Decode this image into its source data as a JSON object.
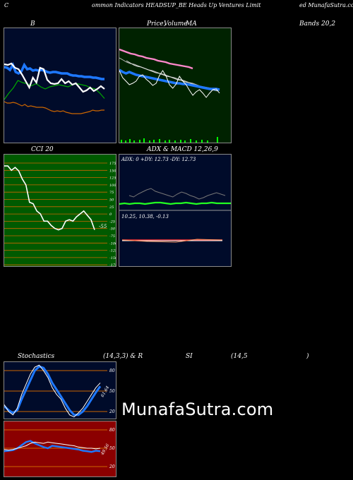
{
  "header": {
    "left_c": "C",
    "title_mid": "ommon  Indicators HEADSUP_BE Heads Up Ventures Limit",
    "title_right": "ed MunafaSutra.com"
  },
  "labels": {
    "bb": "B",
    "price": "Price,",
    "volume": "Volume",
    "ma": "MA",
    "bands": "Bands 20,2",
    "cci": "CCI 20",
    "adx_macd": "ADX  & MACD 12,26,9",
    "adx_text": "ADX: 0   +DY: 12.73  -DY: 12.73",
    "macd_text": "10.25,  10.38,  -0.13",
    "stoch": "Stochastics",
    "stoch_params": "(14,3,3) & R",
    "si": "SI",
    "rsi_params": "(14,5",
    "rsi_close": ")",
    "cci_value": "-55",
    "stoch_value": "61.64",
    "rsi_value": "49.56",
    "watermark": "MunafaSutra.com"
  },
  "colors": {
    "panel_dark": "#000b2a",
    "panel_green": "#002200",
    "panel_red": "#8b0000",
    "cci_green": "#005a00",
    "blue_line": "#1e78ff",
    "orange_line": "#cc6600",
    "green_line": "#00aa00",
    "pink_line": "#ff88cc"
  },
  "cci_ticks": [
    "175",
    "150",
    "125",
    "100",
    "75",
    "50",
    "25",
    "0",
    "-25",
    "-50",
    "-75",
    "-100",
    "-125",
    "-150",
    "-175"
  ],
  "stoch_ticks": [
    "80",
    "50",
    "20"
  ],
  "rsi_ticks": [
    "80",
    "50",
    "20"
  ],
  "chart_data": [
    {
      "type": "line",
      "name": "bollinger",
      "series": [
        {
          "values": [
            66,
            72,
            77,
            84,
            82,
            81,
            79,
            81,
            78,
            76,
            78,
            79,
            80,
            79,
            78,
            80,
            81,
            80,
            79,
            77,
            76,
            72,
            67
          ]
        },
        {
          "values": [
            95,
            96,
            99,
            92,
            102,
            104,
            101,
            92,
            98,
            97,
            100,
            99,
            100,
            99,
            100,
            102,
            103,
            102,
            102,
            103,
            104,
            104,
            104,
            106,
            107,
            107,
            108,
            108,
            109,
            109,
            109,
            110,
            110,
            111,
            112,
            112
          ]
        },
        {
          "values": [
            91,
            92,
            90,
            96,
            98,
            106,
            115,
            124,
            110,
            117,
            96,
            98,
            113,
            118,
            119,
            118,
            112,
            118,
            115,
            120,
            118,
            124,
            130,
            128,
            124,
            129,
            126,
            122,
            126
          ]
        },
        {
          "values": [
            126,
            128,
            128,
            127,
            128,
            130,
            132,
            130,
            133,
            132,
            133,
            134,
            134,
            134,
            135,
            137,
            139,
            140,
            139,
            140,
            139,
            141,
            142,
            143,
            143,
            143,
            143,
            142,
            141,
            140,
            138,
            139,
            139,
            138,
            138
          ]
        }
      ]
    },
    {
      "type": "line",
      "name": "price_ma",
      "series": [
        {
          "values": [
            70,
            72,
            74,
            76,
            77,
            79,
            80,
            82,
            83,
            84,
            86,
            87,
            88,
            90,
            91,
            92,
            93,
            94,
            95,
            97
          ]
        },
        {
          "values": [
            82,
            85,
            88,
            90,
            91,
            93,
            95,
            97,
            99,
            100,
            102,
            104,
            105,
            107,
            109,
            110,
            112,
            113,
            115,
            117,
            118,
            120,
            122,
            123,
            124,
            125
          ]
        },
        {
          "values": [
            99,
            102,
            104,
            102,
            104,
            106,
            107,
            108,
            109,
            110,
            111,
            112,
            113,
            114,
            115,
            116,
            117,
            118,
            118,
            119,
            119,
            120,
            121,
            122,
            123,
            124,
            125,
            126,
            126,
            126,
            127
          ]
        },
        {
          "values": [
            100,
            110,
            115,
            120,
            118,
            115,
            108,
            106,
            112,
            116,
            121,
            118,
            107,
            100,
            108,
            120,
            125,
            119,
            108,
            115,
            120,
            128,
            135,
            130,
            127,
            132,
            138,
            132,
            127,
            126,
            132
          ]
        }
      ]
    },
    {
      "type": "line",
      "name": "cci",
      "series": [
        {
          "values": [
            165,
            165,
            150,
            160,
            148,
            120,
            100,
            40,
            35,
            10,
            0,
            -25,
            -25,
            -40,
            -50,
            -55,
            -50,
            -25,
            -20,
            -25,
            -10,
            0,
            10,
            -5,
            -20,
            -55
          ]
        }
      ],
      "ylim": [
        -175,
        175
      ]
    },
    {
      "type": "line",
      "name": "adx",
      "series": [
        {
          "values": [
            20,
            18,
            22,
            25,
            28,
            30,
            26,
            24,
            22,
            20,
            18,
            22,
            25,
            23,
            20,
            18,
            15,
            17,
            20,
            22,
            24,
            22,
            20
          ]
        },
        {
          "values": [
            12,
            13,
            12,
            13,
            13,
            12,
            13,
            14,
            14,
            13,
            12,
            13,
            13,
            14,
            13,
            12,
            13,
            13,
            14,
            13,
            13,
            13,
            13
          ]
        }
      ]
    },
    {
      "type": "line",
      "name": "stochastic",
      "series": [
        {
          "values": [
            30,
            20,
            15,
            25,
            45,
            60,
            75,
            85,
            88,
            80,
            70,
            55,
            45,
            38,
            25,
            15,
            12,
            18,
            25,
            35,
            45,
            55,
            62
          ]
        },
        {
          "values": [
            28,
            22,
            18,
            22,
            38,
            52,
            66,
            80,
            86,
            84,
            75,
            62,
            52,
            42,
            32,
            22,
            15,
            15,
            20,
            28,
            38,
            48,
            57
          ]
        }
      ],
      "ylim": [
        0,
        100
      ]
    },
    {
      "type": "line",
      "name": "rsi",
      "series": [
        {
          "values": [
            48,
            47,
            48,
            50,
            52,
            54,
            58,
            60,
            59,
            58,
            60,
            59,
            58,
            57,
            56,
            55,
            54,
            52,
            51,
            50,
            50,
            49,
            50
          ]
        },
        {
          "values": [
            45,
            46,
            47,
            50,
            55,
            60,
            62,
            58,
            55,
            52,
            50,
            54,
            53,
            52,
            51,
            50,
            49,
            48,
            46,
            45,
            44,
            46,
            45
          ]
        }
      ],
      "ylim": [
        0,
        100
      ]
    }
  ]
}
